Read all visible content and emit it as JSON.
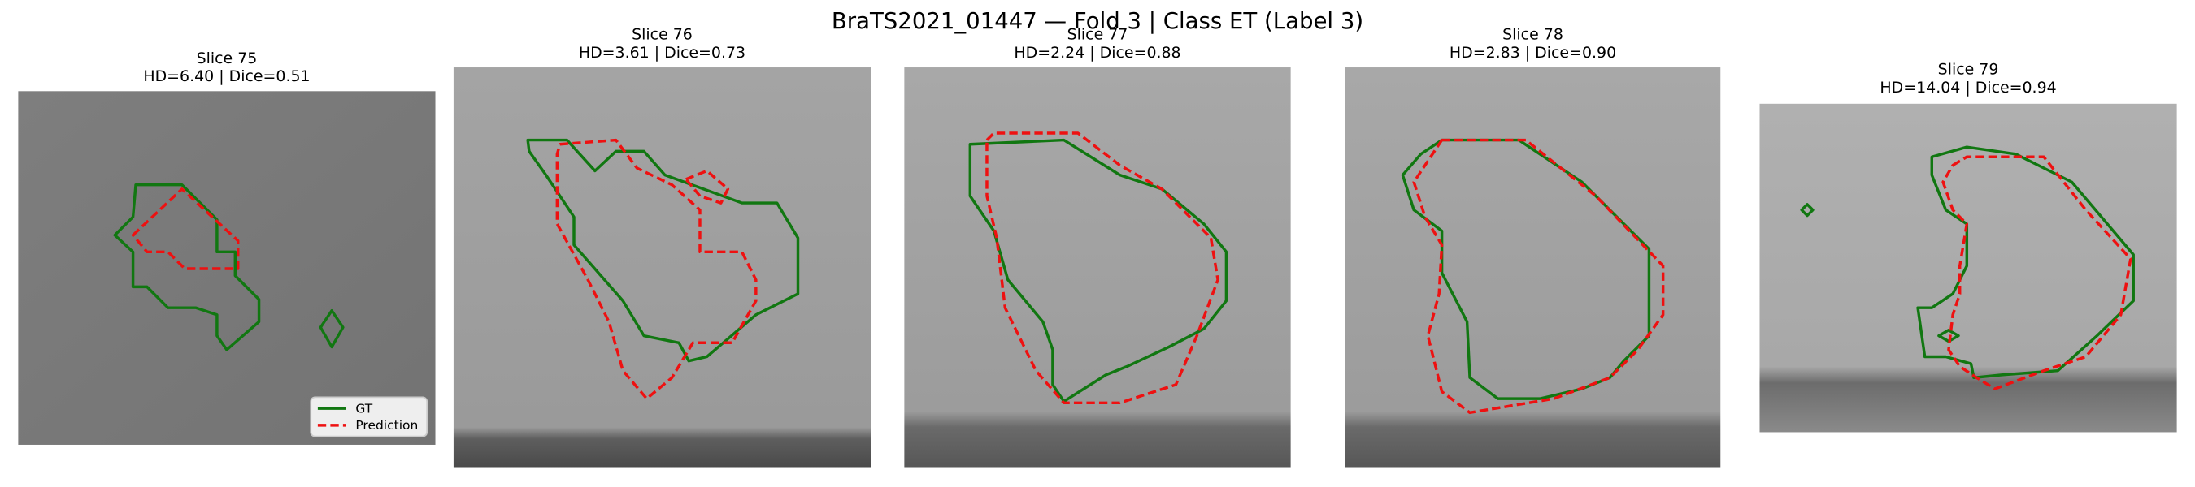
{
  "header": {
    "title": "BraTS2021_01447 — Fold 3 | Class ET (Label 3)"
  },
  "panels": [
    {
      "slice": "Slice 75",
      "metrics": "HD=6.40 | Dice=0.51"
    },
    {
      "slice": "Slice 76",
      "metrics": "HD=3.61 | Dice=0.73"
    },
    {
      "slice": "Slice 77",
      "metrics": "HD=2.24 | Dice=0.88"
    },
    {
      "slice": "Slice 78",
      "metrics": "HD=2.83 | Dice=0.90"
    },
    {
      "slice": "Slice 79",
      "metrics": "HD=14.04 | Dice=0.94"
    }
  ],
  "legend": {
    "items": [
      "GT",
      "Prediction"
    ]
  }
}
